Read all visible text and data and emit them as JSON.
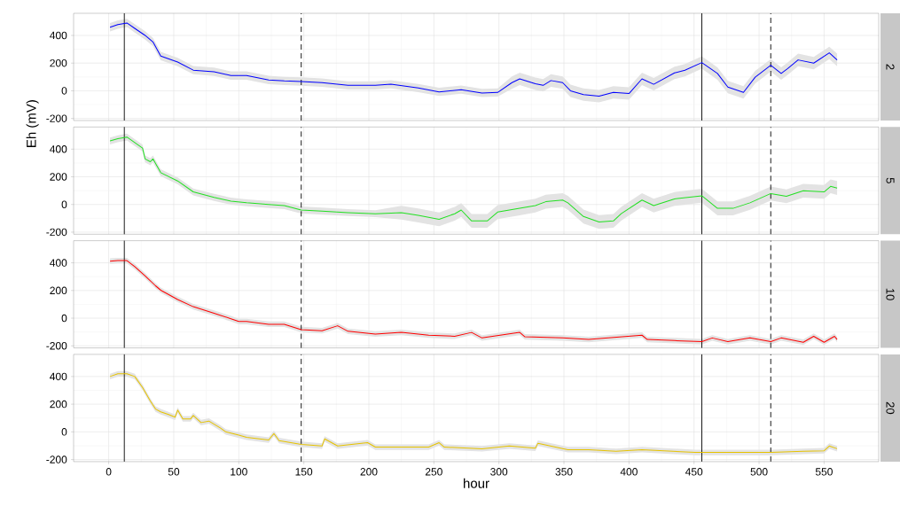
{
  "chart_data": [
    {
      "type": "line",
      "annotations": [
        "2"
      ],
      "tick_labels": "y",
      "grid": true,
      "ylabel": "Eh (mV)",
      "xlim": [
        -27,
        592
      ],
      "ylim": [
        -215,
        560
      ],
      "xticks": [
        0,
        50,
        100,
        150,
        200,
        250,
        300,
        350,
        400,
        450,
        500,
        550
      ],
      "yticks": [
        -200,
        0,
        200,
        400
      ],
      "ref_lines": [
        {
          "axis": "x",
          "value": 12,
          "line_style": "solid",
          "color": "#000000"
        },
        {
          "axis": "x",
          "value": 148,
          "line_style": "dashed",
          "color": "#000000"
        },
        {
          "axis": "x",
          "value": 456,
          "line_style": "solid",
          "color": "#000000"
        },
        {
          "axis": "x",
          "value": 509,
          "line_style": "dashed",
          "color": "#000000"
        }
      ],
      "series": [
        {
          "color": "#0000ff",
          "x": [
            1,
            7,
            14,
            20,
            28,
            34,
            40,
            53,
            65,
            81,
            94,
            106,
            123,
            135,
            148,
            164,
            184,
            205,
            217,
            238,
            254,
            271,
            287,
            299,
            310,
            316,
            328,
            334,
            340,
            349,
            355,
            365,
            377,
            388,
            400,
            410,
            419,
            435,
            443,
            456,
            468,
            476,
            488,
            497,
            509,
            517,
            522,
            530,
            542,
            554,
            560
          ],
          "values": [
            459,
            478,
            490,
            451,
            400,
            353,
            251,
            208,
            149,
            137,
            110,
            110,
            78,
            71,
            67,
            59,
            39,
            39,
            47,
            20,
            -8,
            8,
            -16,
            -12,
            59,
            86,
            51,
            39,
            74,
            59,
            0,
            -27,
            -39,
            -12,
            -20,
            86,
            47,
            129,
            149,
            204,
            125,
            27,
            -12,
            98,
            184,
            125,
            160,
            223,
            200,
            274,
            223
          ],
          "lower": [
            429,
            448,
            460,
            421,
            370,
            323,
            221,
            178,
            119,
            107,
            80,
            80,
            48,
            41,
            37,
            29,
            9,
            9,
            17,
            -10,
            -38,
            -22,
            -46,
            -42,
            14,
            41,
            6,
            -6,
            29,
            14,
            -45,
            -72,
            -84,
            -57,
            -65,
            41,
            2,
            84,
            104,
            159,
            80,
            -18,
            -57,
            53,
            139,
            80,
            115,
            178,
            155,
            229,
            178
          ],
          "upper": [
            489,
            508,
            520,
            481,
            430,
            383,
            281,
            238,
            179,
            167,
            140,
            140,
            108,
            101,
            97,
            89,
            69,
            69,
            77,
            50,
            22,
            38,
            14,
            18,
            104,
            131,
            96,
            84,
            119,
            104,
            45,
            18,
            6,
            33,
            25,
            131,
            92,
            174,
            194,
            249,
            170,
            72,
            33,
            143,
            229,
            170,
            205,
            268,
            245,
            319,
            268
          ]
        }
      ]
    },
    {
      "type": "line",
      "annotations": [
        "5"
      ],
      "tick_labels": "y",
      "grid": true,
      "xlim": [
        -27,
        592
      ],
      "ylim": [
        -215,
        560
      ],
      "xticks": [
        0,
        50,
        100,
        150,
        200,
        250,
        300,
        350,
        400,
        450,
        500,
        550
      ],
      "yticks": [
        -200,
        0,
        200,
        400
      ],
      "ref_lines": [
        {
          "axis": "x",
          "value": 12,
          "line_style": "solid",
          "color": "#000000"
        },
        {
          "axis": "x",
          "value": 148,
          "line_style": "dashed",
          "color": "#000000"
        },
        {
          "axis": "x",
          "value": 456,
          "line_style": "solid",
          "color": "#000000"
        },
        {
          "axis": "x",
          "value": 509,
          "line_style": "dashed",
          "color": "#000000"
        }
      ],
      "series": [
        {
          "color": "#22e022",
          "x": [
            1,
            7,
            14,
            20,
            26,
            28,
            32,
            34,
            40,
            53,
            65,
            81,
            94,
            106,
            123,
            135,
            148,
            164,
            184,
            205,
            225,
            238,
            254,
            266,
            271,
            279,
            291,
            299,
            316,
            328,
            336,
            349,
            353,
            365,
            377,
            388,
            394,
            410,
            419,
            435,
            456,
            468,
            480,
            493,
            509,
            521,
            534,
            550,
            555,
            560
          ],
          "values": [
            459,
            475,
            487,
            448,
            408,
            329,
            309,
            329,
            230,
            170,
            91,
            51,
            24,
            12,
            0,
            -8,
            -40,
            -48,
            -59,
            -67,
            -59,
            -79,
            -107,
            -67,
            -40,
            -119,
            -119,
            -55,
            -28,
            -8,
            20,
            32,
            12,
            -87,
            -127,
            -119,
            -67,
            32,
            -8,
            40,
            63,
            -28,
            -28,
            12,
            79,
            59,
            99,
            91,
            131,
            119
          ],
          "lower": [
            434,
            450,
            462,
            423,
            383,
            304,
            284,
            304,
            205,
            145,
            66,
            26,
            -1,
            -13,
            -25,
            -33,
            -65,
            -73,
            -84,
            -92,
            -109,
            -129,
            -157,
            -117,
            -90,
            -169,
            -169,
            -105,
            -78,
            -58,
            -30,
            -18,
            -38,
            -137,
            -177,
            -169,
            -117,
            -18,
            -58,
            -10,
            13,
            -78,
            -78,
            -38,
            29,
            9,
            49,
            41,
            81,
            69
          ],
          "upper": [
            484,
            500,
            512,
            473,
            433,
            354,
            334,
            354,
            255,
            195,
            116,
            76,
            49,
            37,
            25,
            17,
            -15,
            -23,
            -34,
            -42,
            -9,
            -29,
            -57,
            -17,
            10,
            -69,
            -69,
            -5,
            22,
            42,
            70,
            82,
            62,
            -37,
            -77,
            -69,
            -17,
            82,
            42,
            90,
            113,
            22,
            22,
            62,
            129,
            109,
            149,
            141,
            181,
            169
          ]
        }
      ]
    },
    {
      "type": "line",
      "annotations": [
        "10"
      ],
      "tick_labels": "y",
      "grid": true,
      "xlim": [
        -27,
        592
      ],
      "ylim": [
        -215,
        560
      ],
      "xticks": [
        0,
        50,
        100,
        150,
        200,
        250,
        300,
        350,
        400,
        450,
        500,
        550
      ],
      "yticks": [
        -200,
        0,
        200,
        400
      ],
      "ref_lines": [
        {
          "axis": "x",
          "value": 12,
          "line_style": "solid",
          "color": "#000000"
        },
        {
          "axis": "x",
          "value": 148,
          "line_style": "dashed",
          "color": "#000000"
        },
        {
          "axis": "x",
          "value": 456,
          "line_style": "solid",
          "color": "#000000"
        },
        {
          "axis": "x",
          "value": 509,
          "line_style": "dashed",
          "color": "#000000"
        }
      ],
      "series": [
        {
          "color": "#ff0000",
          "x": [
            1,
            7,
            14,
            20,
            28,
            36,
            40,
            53,
            65,
            81,
            94,
            100,
            106,
            123,
            135,
            148,
            164,
            176,
            184,
            205,
            225,
            246,
            266,
            279,
            287,
            316,
            320,
            349,
            369,
            410,
            414,
            435,
            456,
            464,
            476,
            493,
            509,
            517,
            534,
            542,
            550,
            558,
            560
          ],
          "values": [
            412,
            416,
            416,
            372,
            305,
            234,
            202,
            135,
            83,
            36,
            -4,
            -24,
            -24,
            -44,
            -44,
            -83,
            -91,
            -55,
            -95,
            -115,
            -103,
            -123,
            -131,
            -103,
            -143,
            -103,
            -135,
            -143,
            -154,
            -123,
            -154,
            -162,
            -170,
            -143,
            -170,
            -143,
            -170,
            -143,
            -174,
            -131,
            -174,
            -131,
            -154
          ],
          "lower": [
            392,
            396,
            396,
            352,
            285,
            214,
            182,
            115,
            63,
            16,
            -24,
            -44,
            -44,
            -64,
            -64,
            -103,
            -111,
            -75,
            -115,
            -135,
            -123,
            -143,
            -151,
            -123,
            -163,
            -123,
            -155,
            -163,
            -174,
            -143,
            -174,
            -182,
            -190,
            -163,
            -190,
            -163,
            -190,
            -163,
            -194,
            -151,
            -194,
            -151,
            -174
          ],
          "upper": [
            432,
            436,
            436,
            392,
            325,
            254,
            222,
            155,
            103,
            56,
            16,
            -4,
            -4,
            -24,
            -24,
            -63,
            -71,
            -35,
            -75,
            -95,
            -83,
            -103,
            -111,
            -83,
            -123,
            -83,
            -115,
            -123,
            -134,
            -103,
            -134,
            -142,
            -150,
            -123,
            -150,
            -123,
            -150,
            -123,
            -154,
            -111,
            -154,
            -111,
            -134
          ]
        }
      ]
    },
    {
      "type": "line",
      "annotations": [
        "20"
      ],
      "xlabel": "hour",
      "grid": true,
      "xlim": [
        -27,
        592
      ],
      "ylim": [
        -215,
        560
      ],
      "xticks": [
        0,
        50,
        100,
        150,
        200,
        250,
        300,
        350,
        400,
        450,
        500,
        550
      ],
      "yticks": [
        -200,
        0,
        200,
        400
      ],
      "ref_lines": [
        {
          "axis": "x",
          "value": 12,
          "line_style": "solid",
          "color": "#000000"
        },
        {
          "axis": "x",
          "value": 148,
          "line_style": "dashed",
          "color": "#000000"
        },
        {
          "axis": "x",
          "value": 456,
          "line_style": "solid",
          "color": "#000000"
        },
        {
          "axis": "x",
          "value": 509,
          "line_style": "dashed",
          "color": "#000000"
        }
      ],
      "series": [
        {
          "color": "#e6c300",
          "x": [
            1,
            7,
            14,
            20,
            26,
            32,
            36,
            40,
            46,
            51,
            53,
            57,
            63,
            65,
            71,
            77,
            86,
            90,
            100,
            106,
            123,
            127,
            131,
            148,
            164,
            166,
            176,
            199,
            205,
            246,
            254,
            258,
            287,
            308,
            328,
            330,
            353,
            369,
            390,
            410,
            451,
            472,
            493,
            509,
            534,
            550,
            554,
            560
          ],
          "values": [
            400,
            420,
            420,
            400,
            321,
            223,
            165,
            145,
            125,
            106,
            157,
            94,
            94,
            118,
            67,
            78,
            27,
            0,
            -24,
            -39,
            -59,
            -12,
            -63,
            -90,
            -102,
            -51,
            -102,
            -78,
            -110,
            -110,
            -78,
            -110,
            -122,
            -102,
            -118,
            -82,
            -129,
            -129,
            -141,
            -129,
            -149,
            -149,
            -149,
            -149,
            -141,
            -137,
            -102,
            -122
          ],
          "lower": [
            380,
            400,
            400,
            380,
            301,
            203,
            145,
            125,
            105,
            86,
            137,
            74,
            74,
            98,
            47,
            58,
            7,
            -20,
            -44,
            -59,
            -79,
            -32,
            -83,
            -110,
            -122,
            -71,
            -122,
            -98,
            -130,
            -130,
            -98,
            -130,
            -142,
            -122,
            -138,
            -102,
            -149,
            -149,
            -161,
            -149,
            -169,
            -169,
            -169,
            -169,
            -161,
            -157,
            -122,
            -142
          ],
          "upper": [
            420,
            440,
            440,
            420,
            341,
            243,
            185,
            165,
            145,
            126,
            177,
            114,
            114,
            138,
            87,
            98,
            47,
            20,
            -4,
            -19,
            -39,
            8,
            -43,
            -70,
            -82,
            -31,
            -82,
            -58,
            -90,
            -90,
            -58,
            -90,
            -102,
            -82,
            -98,
            -62,
            -109,
            -109,
            -121,
            -109,
            -129,
            -129,
            -129,
            -129,
            -121,
            -117,
            -82,
            -102
          ]
        }
      ]
    }
  ]
}
